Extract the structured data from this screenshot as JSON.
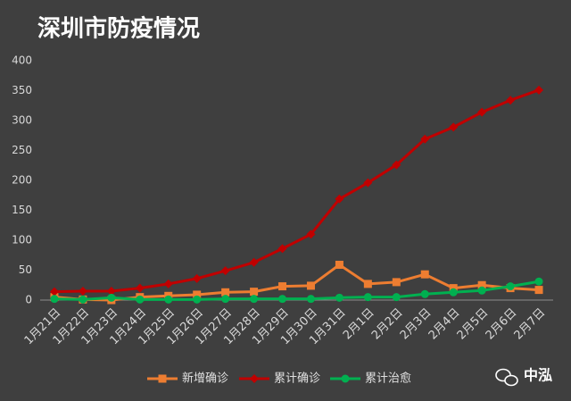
{
  "chart_data": {
    "type": "line",
    "title": "深圳市防疫情况",
    "categories": [
      "1月21日",
      "1月22日",
      "1月23日",
      "1月24日",
      "1月25日",
      "1月26日",
      "1月27日",
      "1月28日",
      "1月29日",
      "1月30日",
      "1月31日",
      "2月1日",
      "2月2日",
      "2月3日",
      "2月4日",
      "2月5日",
      "2月6日",
      "2月7日"
    ],
    "series": [
      {
        "name": "新增确诊",
        "color": "#ed7d31",
        "marker": "square",
        "values": [
          5,
          1,
          0,
          5,
          7,
          9,
          13,
          14,
          23,
          24,
          59,
          27,
          30,
          43,
          20,
          25,
          20,
          17
        ]
      },
      {
        "name": "累计确诊",
        "color": "#c00000",
        "marker": "diamond",
        "values": [
          14,
          15,
          15,
          20,
          27,
          36,
          49,
          63,
          86,
          110,
          169,
          196,
          226,
          269,
          289,
          314,
          334,
          351
        ]
      },
      {
        "name": "累计治愈",
        "color": "#00b050",
        "marker": "circle",
        "values": [
          2,
          1,
          4,
          1,
          1,
          1,
          2,
          2,
          2,
          2,
          4,
          5,
          5,
          10,
          13,
          16,
          23,
          31
        ]
      }
    ],
    "ylim": [
      0,
      400
    ],
    "yticks": [
      0,
      50,
      100,
      150,
      200,
      250,
      300,
      350,
      400
    ],
    "grid": false,
    "legend": "bottom"
  },
  "watermark": "中泓"
}
